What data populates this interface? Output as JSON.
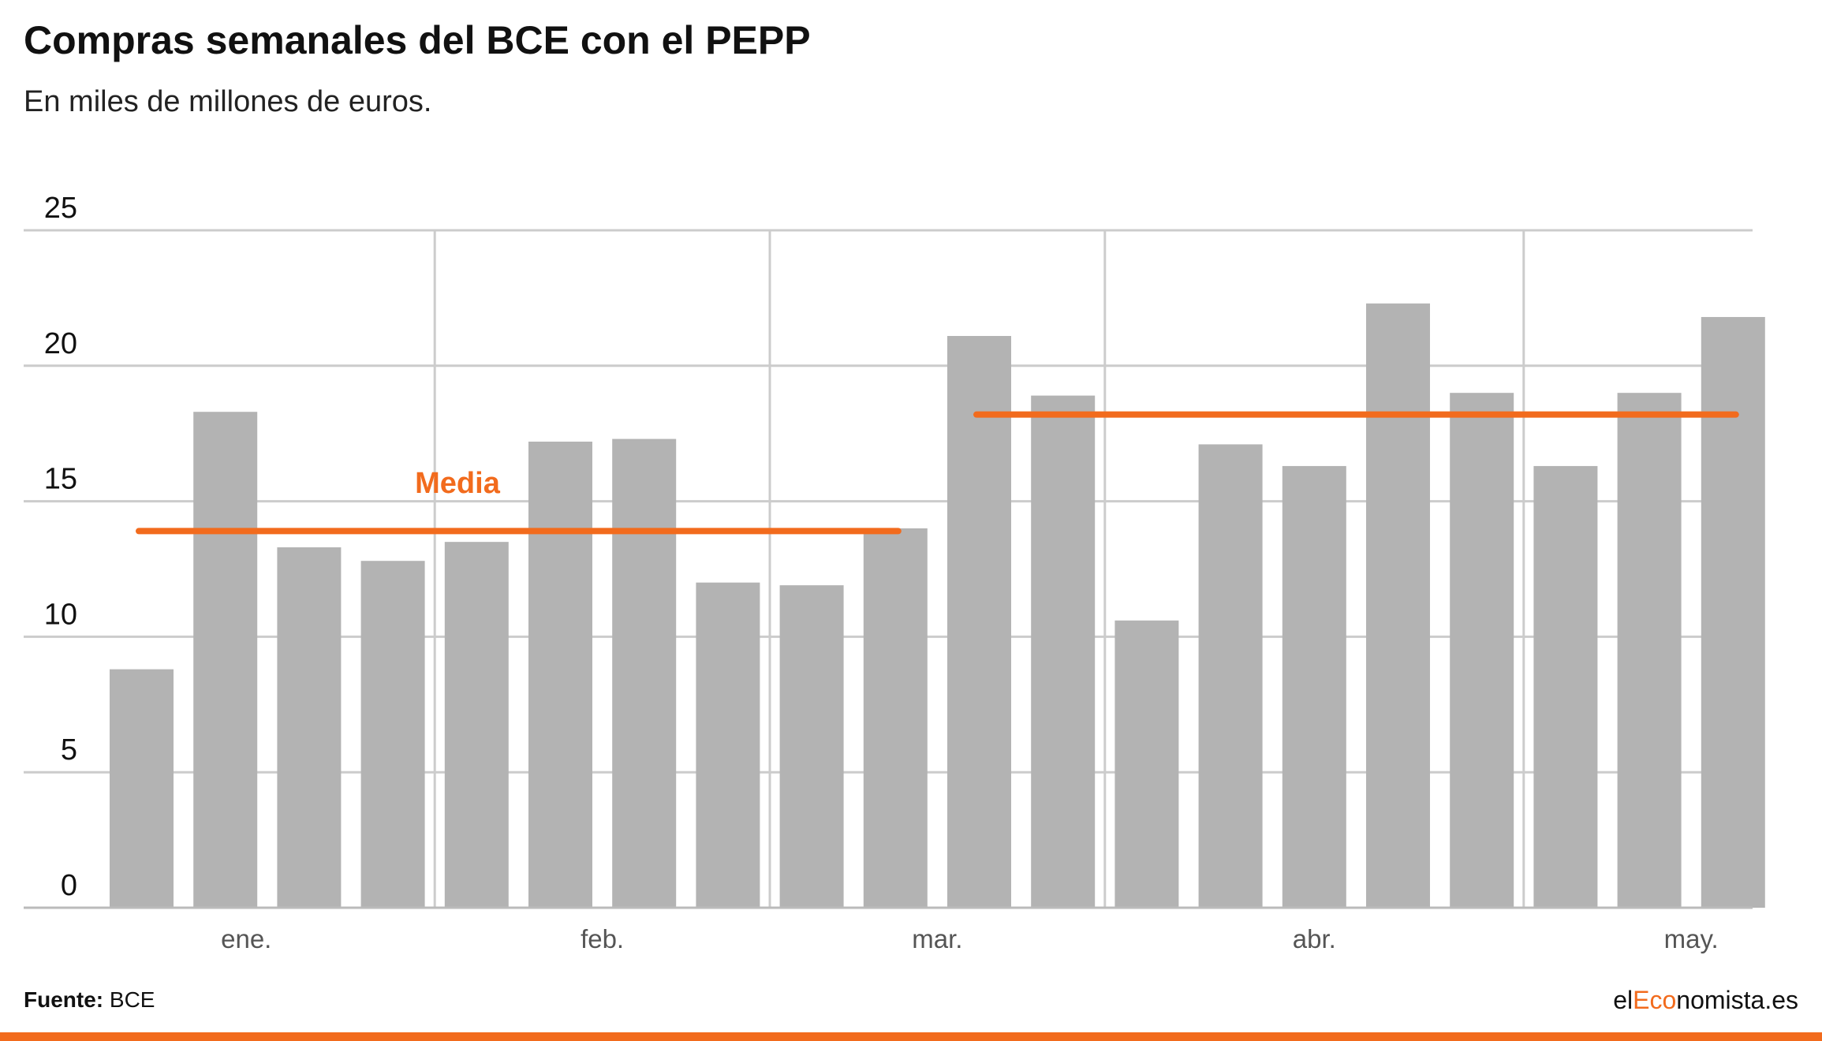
{
  "chart_data": {
    "type": "bar",
    "title": "Compras semanales del BCE con el PEPP",
    "subtitle": "En miles de millones de euros.",
    "ylim": [
      0,
      25
    ],
    "yticks": [
      0,
      5,
      10,
      15,
      20,
      25
    ],
    "grid": true,
    "values": [
      8.8,
      18.3,
      13.3,
      12.8,
      13.5,
      17.2,
      17.3,
      12.0,
      11.9,
      14.0,
      21.1,
      18.9,
      10.6,
      17.1,
      16.3,
      22.3,
      19.0,
      16.3,
      19.0,
      21.8
    ],
    "month_labels": [
      {
        "label": "ene.",
        "after_bar": 1.25
      },
      {
        "label": "feb.",
        "after_bar": 5.5
      },
      {
        "label": "mar.",
        "after_bar": 9.5
      },
      {
        "label": "abr.",
        "after_bar": 14.0
      },
      {
        "label": "may.",
        "after_bar": 18.5
      }
    ],
    "month_separators_after_bar": [
      3,
      7,
      11,
      16
    ],
    "averages": [
      {
        "from_bar": 0,
        "to_bar": 9,
        "value": 13.9
      },
      {
        "from_bar": 10,
        "to_bar": 19,
        "value": 18.2
      }
    ],
    "annotation": "Media",
    "colors": {
      "bar": "#b3b3b3",
      "average": "#f26b1d",
      "grid": "#cccccc"
    }
  },
  "footer": {
    "source_label": "Fuente:",
    "source_value": "BCE",
    "brand_prefix": "el",
    "brand_accent": "Eco",
    "brand_suffix": "nomista.es"
  }
}
